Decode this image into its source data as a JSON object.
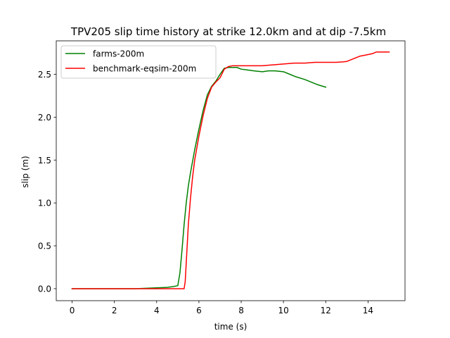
{
  "chart_data": {
    "type": "line",
    "title": "TPV205 slip time history at strike 12.0km and at dip -7.5km",
    "xlabel": "time (s)",
    "ylabel": "slip (m)",
    "xlim": [
      -0.75,
      15.75
    ],
    "ylim": [
      -0.14,
      2.89
    ],
    "xticks": [
      0,
      2,
      4,
      6,
      8,
      10,
      12,
      14
    ],
    "yticks": [
      0.0,
      0.5,
      1.0,
      1.5,
      2.0,
      2.5
    ],
    "xtick_labels": [
      "0",
      "2",
      "4",
      "6",
      "8",
      "10",
      "12",
      "14"
    ],
    "ytick_labels": [
      "0.0",
      "0.5",
      "1.0",
      "1.5",
      "2.0",
      "2.5"
    ],
    "grid": false,
    "legend_position": "upper-left",
    "series": [
      {
        "name": "farms-200m",
        "color": "#008000",
        "x": [
          0,
          1,
          2,
          3,
          3.5,
          4,
          4.5,
          4.8,
          5.0,
          5.1,
          5.2,
          5.3,
          5.4,
          5.5,
          5.6,
          5.8,
          6.0,
          6.2,
          6.4,
          6.6,
          6.8,
          7.0,
          7.2,
          7.4,
          7.6,
          7.8,
          8.0,
          8.3,
          8.6,
          9.0,
          9.3,
          9.6,
          10.0,
          10.3,
          10.6,
          11.0,
          11.3,
          11.6,
          12.0
        ],
        "y": [
          0.0,
          0.0,
          0.0,
          0.0,
          0.005,
          0.01,
          0.015,
          0.025,
          0.035,
          0.18,
          0.45,
          0.75,
          1.0,
          1.2,
          1.35,
          1.62,
          1.86,
          2.08,
          2.26,
          2.36,
          2.42,
          2.5,
          2.57,
          2.58,
          2.58,
          2.58,
          2.56,
          2.55,
          2.54,
          2.53,
          2.54,
          2.54,
          2.53,
          2.5,
          2.47,
          2.44,
          2.41,
          2.38,
          2.35
        ]
      },
      {
        "name": "benchmark-eqsim-200m",
        "color": "#ff0000",
        "x": [
          0,
          1,
          2,
          3,
          4,
          5,
          5.3,
          5.35,
          5.4,
          5.5,
          5.6,
          5.7,
          5.8,
          6.0,
          6.2,
          6.4,
          6.6,
          6.8,
          7.0,
          7.2,
          7.4,
          7.6,
          8.0,
          8.5,
          9.0,
          9.5,
          10.0,
          10.5,
          11.0,
          11.5,
          12.0,
          12.5,
          12.8,
          13.0,
          13.3,
          13.6,
          14.0,
          14.2,
          14.4,
          14.7,
          15.0
        ],
        "y": [
          0.0,
          0.0,
          0.0,
          0.0,
          0.0,
          0.0,
          0.0,
          0.08,
          0.3,
          0.75,
          1.05,
          1.3,
          1.5,
          1.78,
          2.02,
          2.22,
          2.35,
          2.41,
          2.46,
          2.56,
          2.59,
          2.6,
          2.6,
          2.6,
          2.6,
          2.61,
          2.62,
          2.63,
          2.63,
          2.64,
          2.64,
          2.64,
          2.645,
          2.65,
          2.68,
          2.71,
          2.73,
          2.74,
          2.76,
          2.76,
          2.76
        ]
      }
    ]
  }
}
